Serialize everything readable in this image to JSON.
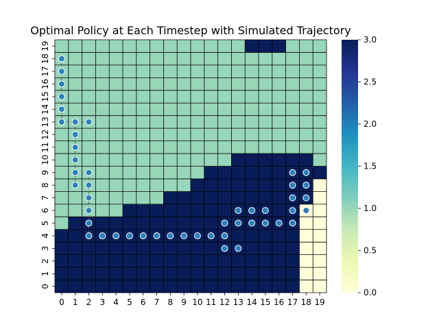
{
  "chart_data": {
    "type": "heatmap",
    "title": "Optimal Policy at Each Timestep with Simulated Trajectory",
    "xlabel": "",
    "ylabel": "",
    "x_ticks": [
      "0",
      "1",
      "2",
      "3",
      "4",
      "5",
      "6",
      "7",
      "8",
      "9",
      "10",
      "11",
      "12",
      "13",
      "14",
      "15",
      "16",
      "17",
      "18",
      "19"
    ],
    "y_ticks": [
      "0",
      "1",
      "2",
      "3",
      "4",
      "5",
      "6",
      "7",
      "8",
      "9",
      "10",
      "11",
      "12",
      "13",
      "14",
      "15",
      "16",
      "17",
      "18",
      "19"
    ],
    "colorbar": {
      "min": 0.0,
      "max": 3.0,
      "ticks": [
        "0.0",
        "0.5",
        "1.0",
        "1.5",
        "2.0",
        "2.5",
        "3.0"
      ],
      "colormap": "YlGnBu"
    },
    "colors": {
      "value_0": "#ffffd9",
      "value_1": "#97d6b9",
      "value_3": "#081d58",
      "grid": "#000000",
      "marker": "#2c7fb8"
    },
    "policy_by_column": [
      {
        "x": 0,
        "value_3_up_to_row": 4,
        "value_1_up_to_row": 19
      },
      {
        "x": 1,
        "value_3_up_to_row": 5,
        "value_1_up_to_row": 19
      },
      {
        "x": 2,
        "value_3_up_to_row": 5,
        "value_1_up_to_row": 19
      },
      {
        "x": 3,
        "value_3_up_to_row": 5,
        "value_1_up_to_row": 19
      },
      {
        "x": 4,
        "value_3_up_to_row": 5,
        "value_1_up_to_row": 19
      },
      {
        "x": 5,
        "value_3_up_to_row": 6,
        "value_1_up_to_row": 19
      },
      {
        "x": 6,
        "value_3_up_to_row": 6,
        "value_1_up_to_row": 19
      },
      {
        "x": 7,
        "value_3_up_to_row": 6,
        "value_1_up_to_row": 19
      },
      {
        "x": 8,
        "value_3_up_to_row": 7,
        "value_1_up_to_row": 19
      },
      {
        "x": 9,
        "value_3_up_to_row": 7,
        "value_1_up_to_row": 19
      },
      {
        "x": 10,
        "value_3_up_to_row": 8,
        "value_1_up_to_row": 19
      },
      {
        "x": 11,
        "value_3_up_to_row": 9,
        "value_1_up_to_row": 19
      },
      {
        "x": 12,
        "value_3_up_to_row": 9,
        "value_1_up_to_row": 19
      },
      {
        "x": 13,
        "value_3_up_to_row": 10,
        "value_1_up_to_row": 19
      },
      {
        "x": 14,
        "value_3_up_to_row": 10,
        "value_1_up_to_row": 18,
        "value_3_top": true
      },
      {
        "x": 15,
        "value_3_up_to_row": 10,
        "value_1_up_to_row": 18,
        "value_3_top": true
      },
      {
        "x": 16,
        "value_3_up_to_row": 10,
        "value_1_up_to_row": 18,
        "value_3_top": true
      },
      {
        "x": 17,
        "value_3_up_to_row": 10,
        "value_1_up_to_row": 19
      },
      {
        "x": 18,
        "value_0_up_to_row": 6,
        "value_3_up_to_row": 10,
        "value_1_up_to_row": 19
      },
      {
        "x": 19,
        "value_0_up_to_row": 8,
        "value_3_up_to_row": 9,
        "value_1_up_to_row": 19
      }
    ],
    "trajectory": [
      [
        0.5,
        18.5
      ],
      [
        0.5,
        17.5
      ],
      [
        0.5,
        16.5
      ],
      [
        0.5,
        15.5
      ],
      [
        0.5,
        14.5
      ],
      [
        0.5,
        13.5
      ],
      [
        1.5,
        13.5
      ],
      [
        2.5,
        13.5
      ],
      [
        1.5,
        12.5
      ],
      [
        1.5,
        11.5
      ],
      [
        1.5,
        10.5
      ],
      [
        1.5,
        9.5
      ],
      [
        1.5,
        8.5
      ],
      [
        2.5,
        9.5
      ],
      [
        2.5,
        8.5
      ],
      [
        2.5,
        7.5
      ],
      [
        2.5,
        6.5
      ],
      [
        2.5,
        5.5
      ],
      [
        2.5,
        4.5
      ],
      [
        3.5,
        4.5
      ],
      [
        4.5,
        4.5
      ],
      [
        5.5,
        4.5
      ],
      [
        6.5,
        4.5
      ],
      [
        7.5,
        4.5
      ],
      [
        8.5,
        4.5
      ],
      [
        9.5,
        4.5
      ],
      [
        10.5,
        4.5
      ],
      [
        11.5,
        4.5
      ],
      [
        12.5,
        4.5
      ],
      [
        12.5,
        3.5
      ],
      [
        13.5,
        3.5
      ],
      [
        12.5,
        5.5
      ],
      [
        13.5,
        5.5
      ],
      [
        14.5,
        5.5
      ],
      [
        15.5,
        5.5
      ],
      [
        16.5,
        5.5
      ],
      [
        17.5,
        5.5
      ],
      [
        13.5,
        6.5
      ],
      [
        14.5,
        6.5
      ],
      [
        15.5,
        6.5
      ],
      [
        17.5,
        6.5
      ],
      [
        17.5,
        7.5
      ],
      [
        17.5,
        8.5
      ],
      [
        17.5,
        9.5
      ],
      [
        18.5,
        6.5
      ],
      [
        18.5,
        7.5
      ],
      [
        18.5,
        8.5
      ],
      [
        18.5,
        9.5
      ]
    ],
    "trajectory_segments": [
      [
        [
          0.5,
          18.5
        ],
        [
          0.5,
          13.5
        ]
      ],
      [
        [
          0.5,
          13.5
        ],
        [
          2.5,
          13.5
        ]
      ],
      [
        [
          1.5,
          13.5
        ],
        [
          1.5,
          8.5
        ]
      ],
      [
        [
          2.5,
          9.5
        ],
        [
          2.5,
          4.5
        ]
      ]
    ]
  }
}
